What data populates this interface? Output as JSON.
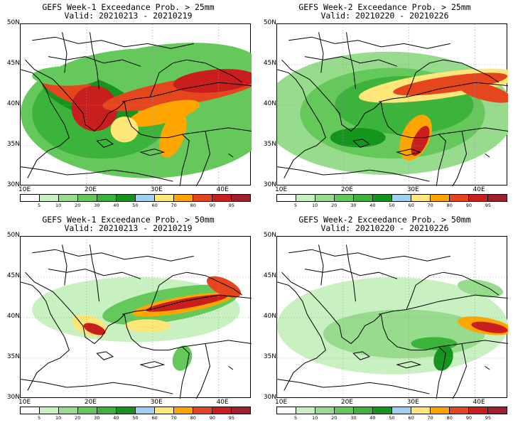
{
  "panels": [
    {
      "title": "GEFS Week-1 Exceedance Prob. > 25mm",
      "valid": "Valid: 20210213 - 20210219"
    },
    {
      "title": "GEFS Week-2 Exceedance Prob. > 25mm",
      "valid": "Valid: 20210220 - 20210226"
    },
    {
      "title": "GEFS Week-1 Exceedance Prob. > 50mm",
      "valid": "Valid: 20210213 - 20210219"
    },
    {
      "title": "GEFS Week-2 Exceedance Prob. > 50mm",
      "valid": "Valid: 20210220 - 20210226"
    }
  ],
  "axes": {
    "y_labels": [
      "50N",
      "45N",
      "40N",
      "35N",
      "30N"
    ],
    "x_labels": [
      "10E",
      "20E",
      "30E",
      "40E"
    ]
  },
  "colorbar": {
    "labels": [
      "5",
      "10",
      "20",
      "30",
      "40",
      "50",
      "60",
      "70",
      "80",
      "90",
      "95"
    ],
    "colors": [
      "#ffffff",
      "#c8f0c0",
      "#96dc8c",
      "#64c85a",
      "#3cb43c",
      "#14961e",
      "#9ed2f0",
      "#ffe678",
      "#ffa500",
      "#e6461e",
      "#c81e1e",
      "#a01e2d"
    ]
  }
}
